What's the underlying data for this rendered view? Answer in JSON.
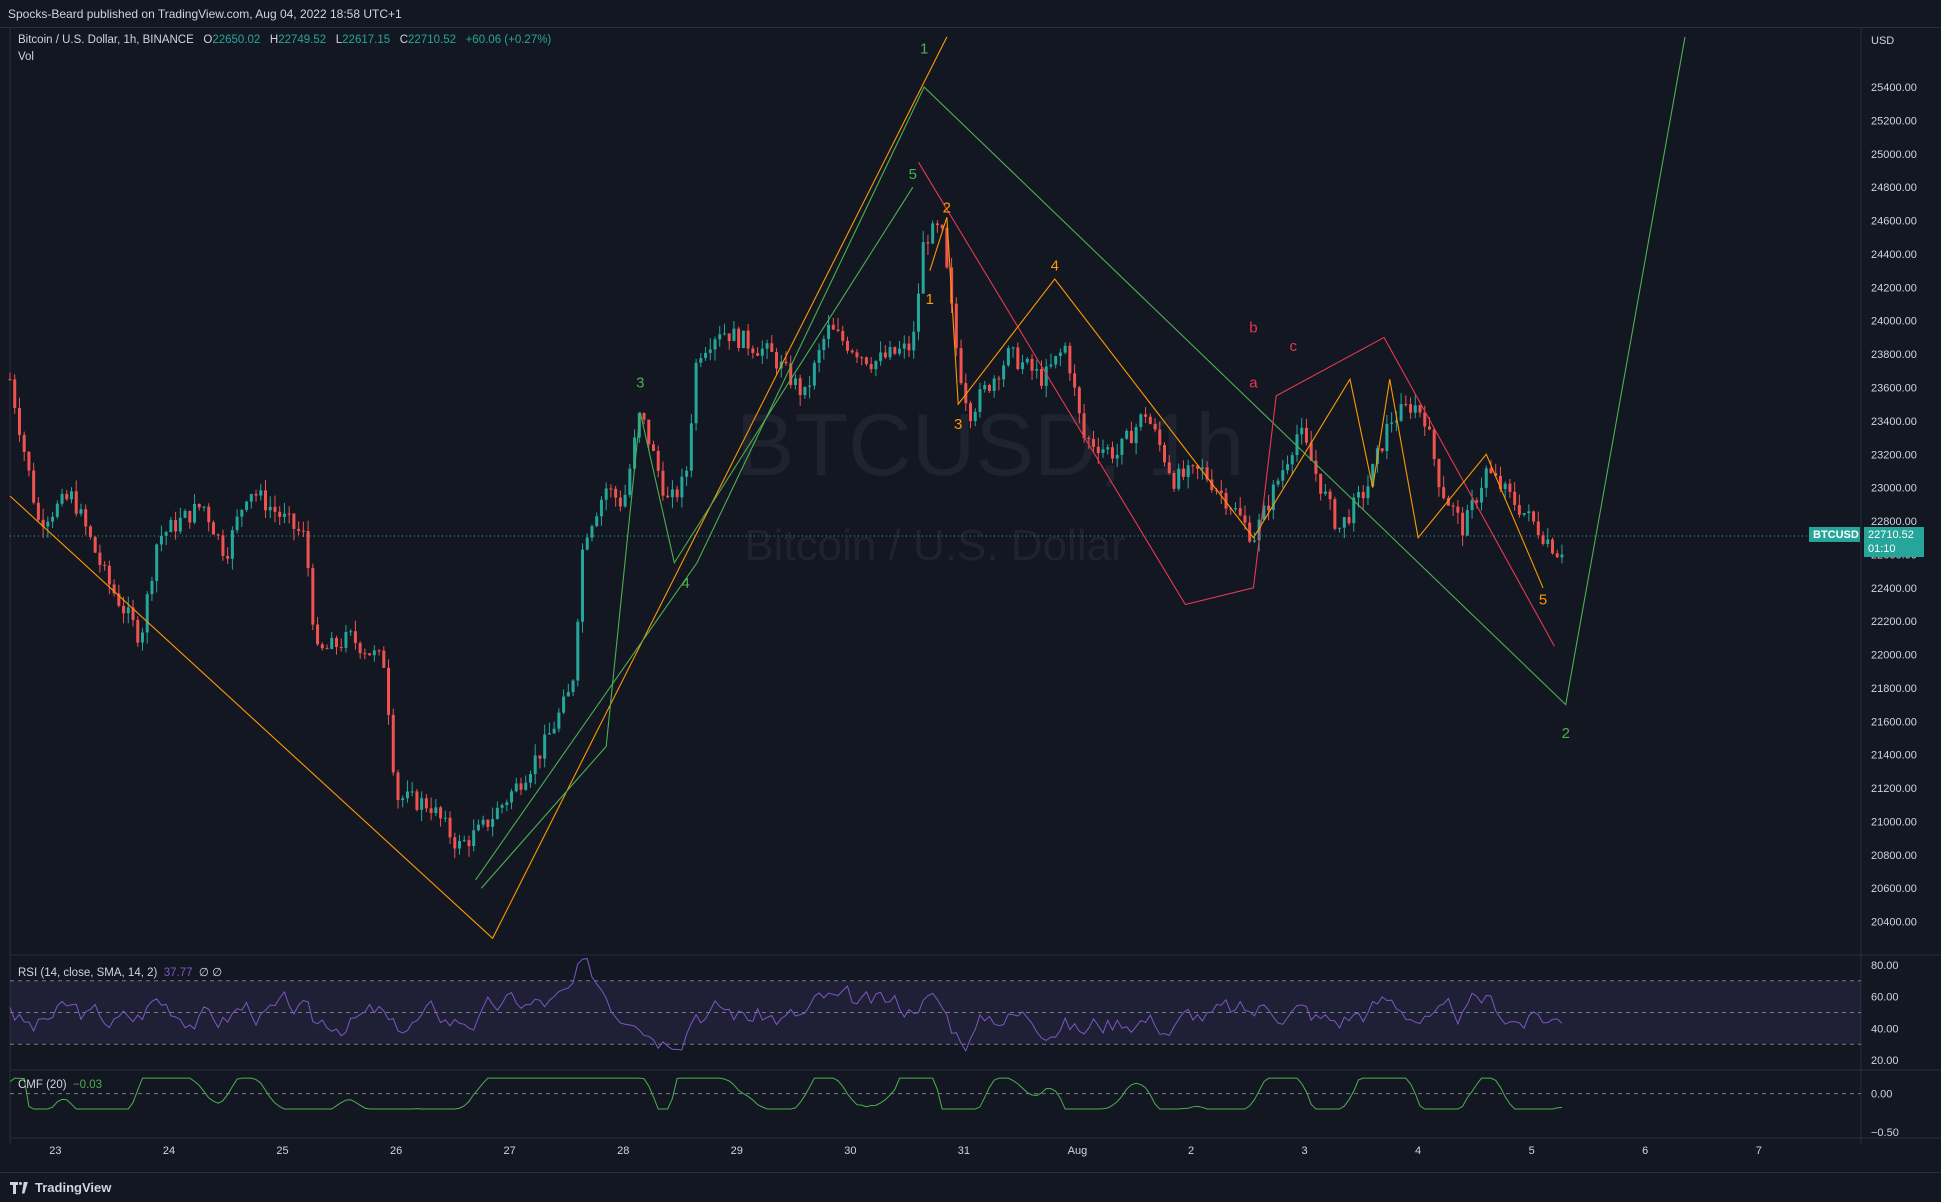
{
  "header": {
    "published": "Spocks-Beard published on TradingView.com, Aug 04, 2022 18:58 UTC+1"
  },
  "legend": {
    "symbol": "Bitcoin / U.S. Dollar, 1h, BINANCE",
    "o_label": "O",
    "o": "22650.02",
    "h_label": "H",
    "h": "22749.52",
    "l_label": "L",
    "l": "22617.15",
    "c_label": "C",
    "c": "22710.52",
    "change": "+60.06 (+0.27%)",
    "volume": "Vol"
  },
  "watermark": {
    "ticker": "BTCUSD, 1h",
    "name": "Bitcoin / U.S. Dollar"
  },
  "price_tag": {
    "symbol": "BTCUSD",
    "price": "22710.52",
    "countdown": "01:10"
  },
  "rsi": {
    "label": "RSI (14, close, SMA, 14, 2)",
    "value": "37.77",
    "extra": "∅ ∅"
  },
  "cmf": {
    "label": "CMF (20)",
    "value": "−0.03"
  },
  "footer": {
    "brand": "TradingView"
  },
  "colors": {
    "bg": "#131722",
    "up": "#26a69a",
    "down": "#ef5350",
    "green": "#4caf50",
    "orange": "#ff9800",
    "red": "#e53950",
    "rsi": "#7e57c2"
  },
  "chart_data": {
    "type": "candlestick",
    "currency": "USD",
    "y_axis": {
      "ylim": [
        20200,
        25700
      ],
      "ticks": [
        20400,
        20600,
        20800,
        21000,
        21200,
        21400,
        21600,
        21800,
        22000,
        22200,
        22400,
        22600,
        22800,
        23000,
        23200,
        23400,
        23600,
        23800,
        24000,
        24200,
        24400,
        24600,
        24800,
        25000,
        25200,
        25400
      ]
    },
    "x_axis": {
      "ticks": [
        "23",
        "24",
        "25",
        "26",
        "27",
        "28",
        "29",
        "30",
        "31",
        "Aug",
        "2",
        "3",
        "4",
        "5",
        "6",
        "7"
      ],
      "range_days": [
        22.6,
        7.9
      ]
    },
    "last_price": 22710.52,
    "price_path": [
      [
        22.6,
        23650
      ],
      [
        22.85,
        22800
      ],
      [
        23.15,
        22950
      ],
      [
        23.45,
        22450
      ],
      [
        23.75,
        22100
      ],
      [
        23.9,
        22700
      ],
      [
        24.3,
        22900
      ],
      [
        24.5,
        22600
      ],
      [
        24.7,
        23000
      ],
      [
        24.95,
        22850
      ],
      [
        25.2,
        22700
      ],
      [
        25.3,
        22000
      ],
      [
        25.6,
        22100
      ],
      [
        25.9,
        21950
      ],
      [
        26.0,
        21150
      ],
      [
        26.3,
        21100
      ],
      [
        26.55,
        20850
      ],
      [
        26.75,
        20950
      ],
      [
        27.05,
        21200
      ],
      [
        27.3,
        21450
      ],
      [
        27.55,
        21800
      ],
      [
        27.65,
        22700
      ],
      [
        27.85,
        23000
      ],
      [
        28.0,
        22900
      ],
      [
        28.15,
        23450
      ],
      [
        28.4,
        22900
      ],
      [
        28.55,
        23050
      ],
      [
        28.65,
        23800
      ],
      [
        28.85,
        23950
      ],
      [
        29.3,
        23800
      ],
      [
        29.6,
        23550
      ],
      [
        29.8,
        23950
      ],
      [
        30.2,
        23750
      ],
      [
        30.55,
        23850
      ],
      [
        30.65,
        24500
      ],
      [
        30.8,
        24550
      ],
      [
        30.95,
        23750
      ],
      [
        31.05,
        23450
      ],
      [
        31.4,
        23800
      ],
      [
        31.7,
        23650
      ],
      [
        31.9,
        23850
      ],
      [
        32.05,
        23300
      ],
      [
        32.35,
        23200
      ],
      [
        32.6,
        23450
      ],
      [
        32.85,
        23050
      ],
      [
        33.1,
        23100
      ],
      [
        33.35,
        22900
      ],
      [
        33.55,
        22700
      ],
      [
        33.8,
        23100
      ],
      [
        33.95,
        23350
      ],
      [
        34.15,
        23000
      ],
      [
        34.3,
        22750
      ],
      [
        34.55,
        23000
      ],
      [
        34.75,
        23400
      ],
      [
        34.95,
        23500
      ],
      [
        35.05,
        23450
      ],
      [
        35.2,
        23000
      ],
      [
        35.4,
        22750
      ],
      [
        35.6,
        23100
      ],
      [
        35.8,
        22950
      ],
      [
        36.0,
        22800
      ],
      [
        36.25,
        22600
      ],
      [
        36.3,
        22710.52
      ]
    ],
    "rsi": {
      "levels": [
        70,
        50,
        30
      ],
      "ticks": [
        20,
        40,
        60,
        80
      ],
      "range": [
        15,
        85
      ],
      "last": 37.77
    },
    "cmf": {
      "ticks": [
        "0.00",
        "−0.50"
      ],
      "last": -0.03
    },
    "wave_labels": [
      {
        "t": "1",
        "color": "green"
      },
      {
        "t": "2",
        "color": "green"
      },
      {
        "t": "3",
        "color": "green"
      },
      {
        "t": "4",
        "color": "green"
      },
      {
        "t": "5",
        "color": "green"
      },
      {
        "t": "1",
        "color": "orange"
      },
      {
        "t": "2",
        "color": "orange"
      },
      {
        "t": "3",
        "color": "orange"
      },
      {
        "t": "4",
        "color": "orange"
      },
      {
        "t": "5",
        "color": "orange"
      },
      {
        "t": "a",
        "color": "red"
      },
      {
        "t": "b",
        "color": "red"
      },
      {
        "t": "c",
        "color": "red"
      }
    ]
  }
}
